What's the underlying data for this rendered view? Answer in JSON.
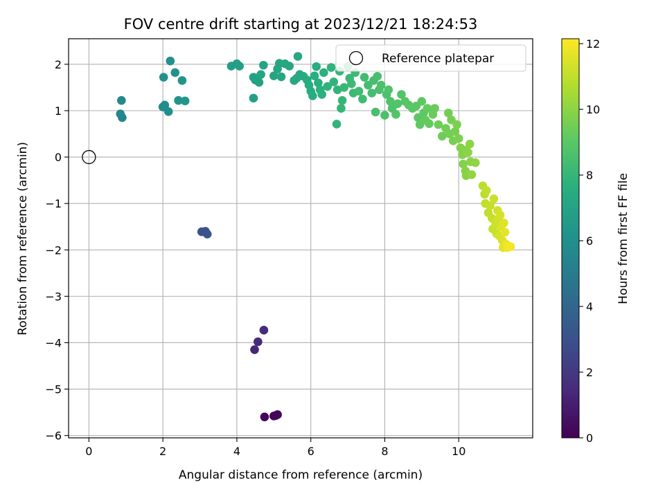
{
  "chart_data": {
    "type": "scatter",
    "title": "FOV centre drift starting at 2023/12/21 18:24:53",
    "xlabel": "Angular distance from reference (arcmin)",
    "ylabel": "Rotation from reference (arcmin)",
    "xlim": [
      -0.55,
      12
    ],
    "ylim": [
      -6.05,
      2.55
    ],
    "xticks": [
      0,
      2,
      4,
      6,
      8,
      10
    ],
    "yticks": [
      -6,
      -5,
      -4,
      -3,
      -2,
      -1,
      0,
      1,
      2
    ],
    "grid": true,
    "legend": {
      "entries": [
        "Reference platepar"
      ],
      "location": "top-right"
    },
    "colorbar": {
      "label": "Hours from first FF file",
      "range": [
        0,
        12.15
      ],
      "ticks": [
        0,
        2,
        4,
        6,
        8,
        10,
        12
      ],
      "colormap": "viridis"
    },
    "reference_point": {
      "x": 0,
      "y": 0
    },
    "points": [
      {
        "x": 4.75,
        "y": -5.6,
        "h": 0.1
      },
      {
        "x": 5.0,
        "y": -5.58,
        "h": 0.2
      },
      {
        "x": 5.1,
        "y": -5.55,
        "h": 0.3
      },
      {
        "x": 5.05,
        "y": -5.57,
        "h": 0.25
      },
      {
        "x": 4.48,
        "y": -4.15,
        "h": 1.3
      },
      {
        "x": 4.57,
        "y": -3.98,
        "h": 1.4
      },
      {
        "x": 4.73,
        "y": -3.73,
        "h": 1.5
      },
      {
        "x": 3.05,
        "y": -1.61,
        "h": 3.0
      },
      {
        "x": 3.15,
        "y": -1.6,
        "h": 3.1
      },
      {
        "x": 3.2,
        "y": -1.66,
        "h": 3.2
      },
      {
        "x": 0.85,
        "y": 0.93,
        "h": 5.6
      },
      {
        "x": 0.9,
        "y": 0.85,
        "h": 5.6
      },
      {
        "x": 0.88,
        "y": 1.22,
        "h": 5.7
      },
      {
        "x": 2.0,
        "y": 1.08,
        "h": 5.9
      },
      {
        "x": 2.05,
        "y": 1.12,
        "h": 5.9
      },
      {
        "x": 2.15,
        "y": 0.98,
        "h": 6.0
      },
      {
        "x": 2.02,
        "y": 1.72,
        "h": 6.1
      },
      {
        "x": 2.2,
        "y": 2.07,
        "h": 6.1
      },
      {
        "x": 2.33,
        "y": 1.82,
        "h": 6.2
      },
      {
        "x": 2.42,
        "y": 1.22,
        "h": 6.3
      },
      {
        "x": 2.52,
        "y": 1.65,
        "h": 6.3
      },
      {
        "x": 2.6,
        "y": 1.21,
        "h": 6.4
      },
      {
        "x": 3.85,
        "y": 1.96,
        "h": 6.7
      },
      {
        "x": 4.0,
        "y": 2.01,
        "h": 6.7
      },
      {
        "x": 4.07,
        "y": 1.96,
        "h": 6.8
      },
      {
        "x": 4.45,
        "y": 1.27,
        "h": 6.8
      },
      {
        "x": 4.45,
        "y": 1.72,
        "h": 6.9
      },
      {
        "x": 4.5,
        "y": 1.66,
        "h": 6.9
      },
      {
        "x": 4.6,
        "y": 1.61,
        "h": 6.9
      },
      {
        "x": 4.65,
        "y": 1.78,
        "h": 7.0
      },
      {
        "x": 4.72,
        "y": 1.98,
        "h": 7.0
      },
      {
        "x": 5.0,
        "y": 1.75,
        "h": 7.1
      },
      {
        "x": 5.1,
        "y": 1.9,
        "h": 7.1
      },
      {
        "x": 5.15,
        "y": 2.02,
        "h": 7.1
      },
      {
        "x": 5.2,
        "y": 1.73,
        "h": 7.2
      },
      {
        "x": 5.3,
        "y": 2.01,
        "h": 7.2
      },
      {
        "x": 5.42,
        "y": 1.96,
        "h": 7.2
      },
      {
        "x": 5.55,
        "y": 1.65,
        "h": 7.3
      },
      {
        "x": 5.62,
        "y": 1.7,
        "h": 7.3
      },
      {
        "x": 5.65,
        "y": 2.17,
        "h": 7.3
      },
      {
        "x": 5.7,
        "y": 1.78,
        "h": 7.4
      },
      {
        "x": 5.8,
        "y": 1.74,
        "h": 7.4
      },
      {
        "x": 5.9,
        "y": 1.66,
        "h": 7.4
      },
      {
        "x": 5.95,
        "y": 1.55,
        "h": 7.5
      },
      {
        "x": 6.0,
        "y": 1.42,
        "h": 7.5
      },
      {
        "x": 6.05,
        "y": 1.32,
        "h": 7.5
      },
      {
        "x": 6.1,
        "y": 1.75,
        "h": 7.6
      },
      {
        "x": 6.15,
        "y": 1.95,
        "h": 7.6
      },
      {
        "x": 6.2,
        "y": 1.6,
        "h": 7.6
      },
      {
        "x": 6.25,
        "y": 1.45,
        "h": 7.7
      },
      {
        "x": 6.3,
        "y": 1.35,
        "h": 7.7
      },
      {
        "x": 6.35,
        "y": 1.82,
        "h": 7.7
      },
      {
        "x": 6.45,
        "y": 1.52,
        "h": 7.8
      },
      {
        "x": 6.55,
        "y": 1.93,
        "h": 7.8
      },
      {
        "x": 6.62,
        "y": 1.62,
        "h": 7.9
      },
      {
        "x": 6.7,
        "y": 0.71,
        "h": 7.9
      },
      {
        "x": 6.72,
        "y": 1.45,
        "h": 7.9
      },
      {
        "x": 6.78,
        "y": 1.85,
        "h": 8.0
      },
      {
        "x": 6.82,
        "y": 1.05,
        "h": 8.0
      },
      {
        "x": 6.85,
        "y": 1.22,
        "h": 8.0
      },
      {
        "x": 6.9,
        "y": 1.5,
        "h": 8.1
      },
      {
        "x": 7.0,
        "y": 1.95,
        "h": 8.1
      },
      {
        "x": 7.05,
        "y": 1.7,
        "h": 8.1
      },
      {
        "x": 7.1,
        "y": 1.58,
        "h": 8.2
      },
      {
        "x": 7.15,
        "y": 1.38,
        "h": 8.2
      },
      {
        "x": 7.2,
        "y": 1.82,
        "h": 8.2
      },
      {
        "x": 7.3,
        "y": 1.42,
        "h": 8.3
      },
      {
        "x": 7.4,
        "y": 1.25,
        "h": 8.3
      },
      {
        "x": 7.45,
        "y": 1.72,
        "h": 8.3
      },
      {
        "x": 7.55,
        "y": 1.55,
        "h": 8.4
      },
      {
        "x": 7.65,
        "y": 1.38,
        "h": 8.4
      },
      {
        "x": 7.7,
        "y": 1.65,
        "h": 8.4
      },
      {
        "x": 7.75,
        "y": 0.97,
        "h": 8.5
      },
      {
        "x": 7.8,
        "y": 1.74,
        "h": 8.5
      },
      {
        "x": 7.85,
        "y": 1.45,
        "h": 8.5
      },
      {
        "x": 7.9,
        "y": 1.55,
        "h": 8.6
      },
      {
        "x": 8.0,
        "y": 0.9,
        "h": 8.6
      },
      {
        "x": 8.05,
        "y": 1.35,
        "h": 8.6
      },
      {
        "x": 8.1,
        "y": 1.45,
        "h": 8.7
      },
      {
        "x": 8.15,
        "y": 1.2,
        "h": 8.7
      },
      {
        "x": 8.2,
        "y": 1.05,
        "h": 8.7
      },
      {
        "x": 8.3,
        "y": 0.92,
        "h": 8.8
      },
      {
        "x": 8.35,
        "y": 1.15,
        "h": 8.8
      },
      {
        "x": 8.45,
        "y": 1.35,
        "h": 8.8
      },
      {
        "x": 8.55,
        "y": 1.2,
        "h": 8.9
      },
      {
        "x": 8.65,
        "y": 1.12,
        "h": 8.9
      },
      {
        "x": 8.75,
        "y": 1.05,
        "h": 9.0
      },
      {
        "x": 8.85,
        "y": 1.1,
        "h": 9.0
      },
      {
        "x": 8.9,
        "y": 0.85,
        "h": 9.0
      },
      {
        "x": 8.95,
        "y": 0.7,
        "h": 9.1
      },
      {
        "x": 9.0,
        "y": 1.2,
        "h": 9.1
      },
      {
        "x": 9.05,
        "y": 0.95,
        "h": 9.1
      },
      {
        "x": 9.1,
        "y": 0.8,
        "h": 9.2
      },
      {
        "x": 9.15,
        "y": 1.05,
        "h": 9.2
      },
      {
        "x": 9.2,
        "y": 0.72,
        "h": 9.2
      },
      {
        "x": 9.3,
        "y": 0.92,
        "h": 9.3
      },
      {
        "x": 9.35,
        "y": 1.05,
        "h": 9.3
      },
      {
        "x": 9.45,
        "y": 0.7,
        "h": 9.4
      },
      {
        "x": 9.55,
        "y": 0.45,
        "h": 9.4
      },
      {
        "x": 9.65,
        "y": 0.62,
        "h": 9.5
      },
      {
        "x": 9.72,
        "y": 0.95,
        "h": 9.5
      },
      {
        "x": 9.75,
        "y": 0.5,
        "h": 9.5
      },
      {
        "x": 9.8,
        "y": 0.8,
        "h": 9.6
      },
      {
        "x": 9.85,
        "y": 0.35,
        "h": 9.6
      },
      {
        "x": 9.9,
        "y": 0.55,
        "h": 9.6
      },
      {
        "x": 9.95,
        "y": 0.7,
        "h": 9.7
      },
      {
        "x": 10.0,
        "y": 0.4,
        "h": 9.7
      },
      {
        "x": 10.05,
        "y": 0.2,
        "h": 9.8
      },
      {
        "x": 10.1,
        "y": 0.05,
        "h": 9.8
      },
      {
        "x": 10.12,
        "y": -0.15,
        "h": 9.8
      },
      {
        "x": 10.15,
        "y": 0.15,
        "h": 9.9
      },
      {
        "x": 10.18,
        "y": -0.3,
        "h": 9.9
      },
      {
        "x": 10.2,
        "y": -0.4,
        "h": 9.9
      },
      {
        "x": 10.25,
        "y": 0.1,
        "h": 10.0
      },
      {
        "x": 10.3,
        "y": 0.28,
        "h": 10.0
      },
      {
        "x": 10.32,
        "y": -0.1,
        "h": 10.0
      },
      {
        "x": 10.35,
        "y": -0.38,
        "h": 10.1
      },
      {
        "x": 10.45,
        "y": -0.12,
        "h": 10.1
      },
      {
        "x": 10.65,
        "y": -0.62,
        "h": 10.9
      },
      {
        "x": 10.7,
        "y": -0.8,
        "h": 10.9
      },
      {
        "x": 10.72,
        "y": -1.0,
        "h": 11.0
      },
      {
        "x": 10.75,
        "y": -0.72,
        "h": 11.0
      },
      {
        "x": 10.8,
        "y": -1.2,
        "h": 11.0
      },
      {
        "x": 10.85,
        "y": -1.05,
        "h": 11.1
      },
      {
        "x": 10.9,
        "y": -1.32,
        "h": 11.1
      },
      {
        "x": 10.92,
        "y": -1.55,
        "h": 11.1
      },
      {
        "x": 10.95,
        "y": -0.9,
        "h": 11.2
      },
      {
        "x": 11.0,
        "y": -1.45,
        "h": 11.2
      },
      {
        "x": 11.02,
        "y": -1.65,
        "h": 11.2
      },
      {
        "x": 11.05,
        "y": -1.15,
        "h": 11.3
      },
      {
        "x": 11.08,
        "y": -1.35,
        "h": 11.3
      },
      {
        "x": 11.1,
        "y": -1.7,
        "h": 11.4
      },
      {
        "x": 11.12,
        "y": -1.25,
        "h": 11.4
      },
      {
        "x": 11.15,
        "y": -1.5,
        "h": 11.5
      },
      {
        "x": 11.18,
        "y": -1.8,
        "h": 11.5
      },
      {
        "x": 11.2,
        "y": -1.95,
        "h": 11.6
      },
      {
        "x": 11.22,
        "y": -1.42,
        "h": 11.6
      },
      {
        "x": 11.25,
        "y": -1.62,
        "h": 11.7
      },
      {
        "x": 11.28,
        "y": -1.88,
        "h": 11.8
      },
      {
        "x": 11.32,
        "y": -1.95,
        "h": 11.9
      },
      {
        "x": 11.4,
        "y": -1.93,
        "h": 12.0
      }
    ]
  }
}
